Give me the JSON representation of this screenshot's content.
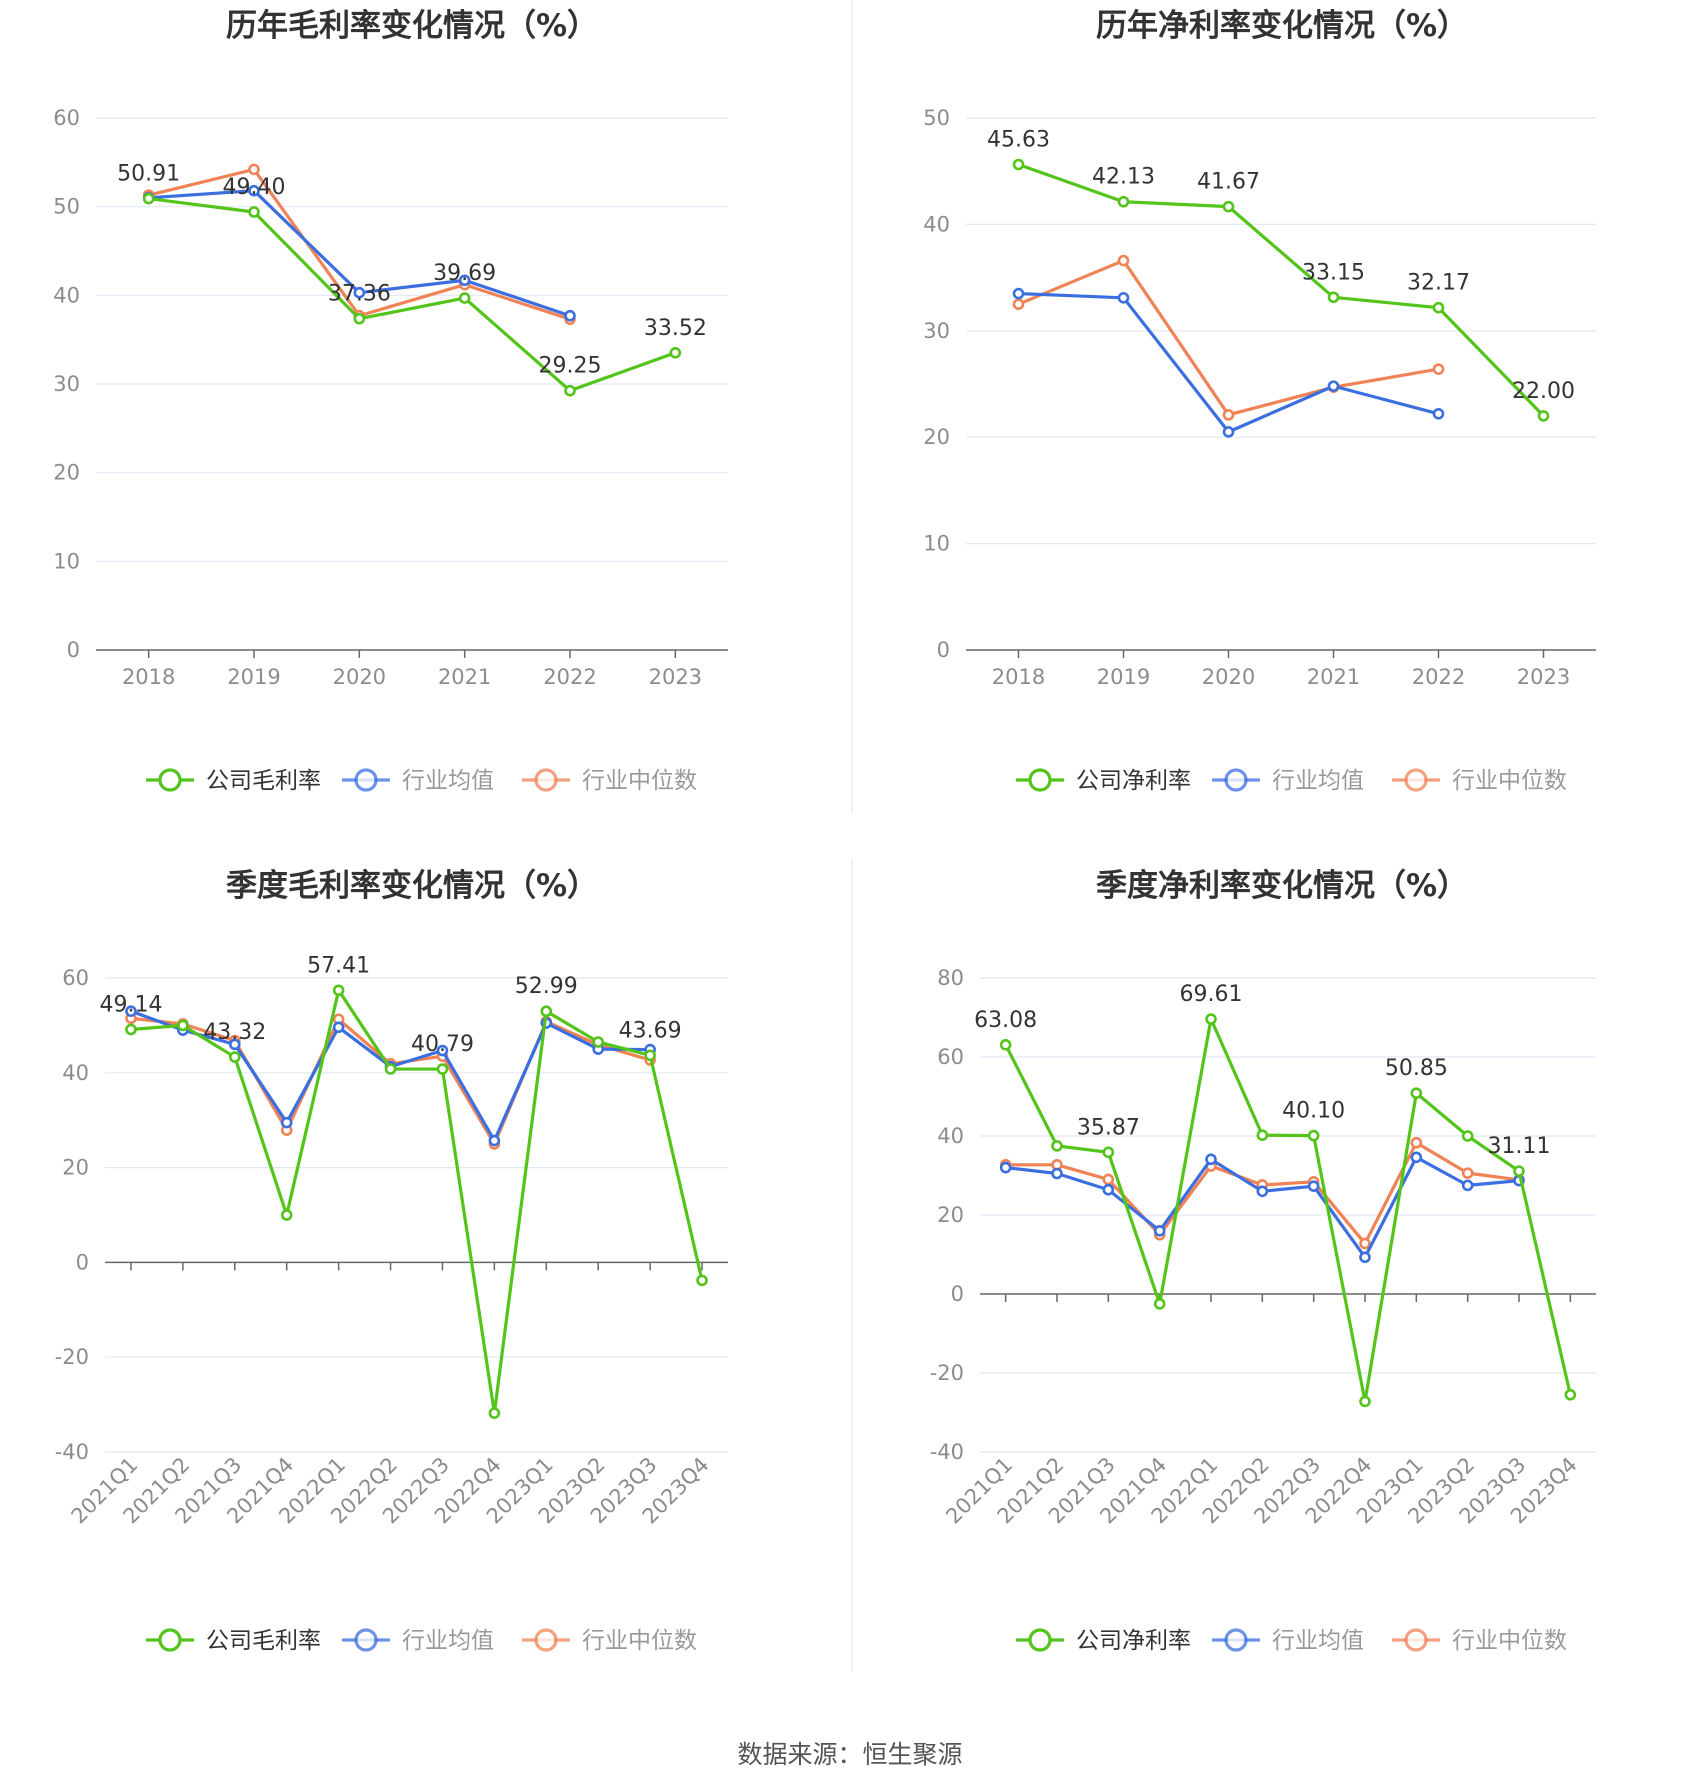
{
  "source_text": "数据来源：恒生聚源",
  "colors": {
    "company": "#52c41a",
    "avg": "#3b6fe0",
    "median": "#f08355",
    "grid": "#e3e8f5",
    "axis": "#666666"
  },
  "legend": {
    "gross": [
      "公司毛利率",
      "行业均值",
      "行业中位数"
    ],
    "net": [
      "公司净利率",
      "行业均值",
      "行业中位数"
    ]
  },
  "chart_data": [
    {
      "type": "line",
      "title": "历年毛利率变化情况（%）",
      "categories": [
        "2018",
        "2019",
        "2020",
        "2021",
        "2022",
        "2023"
      ],
      "ylim": [
        0,
        60
      ],
      "yticks": [
        0,
        10,
        20,
        30,
        40,
        50,
        60
      ],
      "grid": true,
      "legend_position": "bottom",
      "series": [
        {
          "name": "公司毛利率",
          "values": [
            50.91,
            49.4,
            37.36,
            39.69,
            29.25,
            33.52
          ],
          "labels": [
            "50.91",
            "49.40",
            "37.36",
            "39.69",
            "29.25",
            "33.52"
          ]
        },
        {
          "name": "行业均值",
          "values": [
            51.0,
            51.8,
            40.3,
            41.7,
            37.7,
            null
          ]
        },
        {
          "name": "行业中位数",
          "values": [
            51.3,
            54.2,
            37.7,
            41.2,
            37.3,
            null
          ]
        }
      ]
    },
    {
      "type": "line",
      "title": "历年净利率变化情况（%）",
      "categories": [
        "2018",
        "2019",
        "2020",
        "2021",
        "2022",
        "2023"
      ],
      "ylim": [
        0,
        50
      ],
      "yticks": [
        0,
        10,
        20,
        30,
        40,
        50
      ],
      "grid": true,
      "legend_position": "bottom",
      "series": [
        {
          "name": "公司净利率",
          "values": [
            45.63,
            42.13,
            41.67,
            33.15,
            32.17,
            22.0
          ],
          "labels": [
            "45.63",
            "42.13",
            "41.67",
            "33.15",
            "32.17",
            "22.00"
          ]
        },
        {
          "name": "行业均值",
          "values": [
            33.5,
            33.1,
            20.5,
            24.8,
            22.2,
            null
          ]
        },
        {
          "name": "行业中位数",
          "values": [
            32.5,
            36.6,
            22.1,
            24.7,
            26.4,
            null
          ]
        }
      ]
    },
    {
      "type": "line",
      "title": "季度毛利率变化情况（%）",
      "categories": [
        "2021Q1",
        "2021Q2",
        "2021Q3",
        "2021Q4",
        "2022Q1",
        "2022Q2",
        "2022Q3",
        "2022Q4",
        "2023Q1",
        "2023Q2",
        "2023Q3",
        "2023Q4"
      ],
      "ylim": [
        -40,
        60
      ],
      "yticks": [
        -40,
        -20,
        0,
        20,
        40,
        60
      ],
      "grid": true,
      "legend_position": "bottom",
      "series": [
        {
          "name": "公司毛利率",
          "values": [
            49.14,
            50.0,
            43.32,
            10.0,
            57.41,
            40.8,
            40.79,
            -31.8,
            52.99,
            46.5,
            43.69,
            -3.8
          ],
          "labels": [
            "49.14",
            null,
            "43.32",
            null,
            "57.41",
            null,
            "40.79",
            null,
            "52.99",
            null,
            "43.69",
            null
          ]
        },
        {
          "name": "行业均值",
          "values": [
            53.0,
            49.0,
            46.0,
            29.5,
            49.6,
            41.3,
            44.7,
            25.7,
            50.5,
            45.0,
            44.9,
            null
          ]
        },
        {
          "name": "行业中位数",
          "values": [
            51.5,
            50.3,
            46.8,
            27.9,
            51.3,
            41.9,
            43.5,
            25.0,
            50.8,
            45.9,
            42.7,
            null
          ]
        }
      ]
    },
    {
      "type": "line",
      "title": "季度净利率变化情况（%）",
      "categories": [
        "2021Q1",
        "2021Q2",
        "2021Q3",
        "2021Q4",
        "2022Q1",
        "2022Q2",
        "2022Q3",
        "2022Q4",
        "2023Q1",
        "2023Q2",
        "2023Q3",
        "2023Q4"
      ],
      "ylim": [
        -40,
        80
      ],
      "yticks": [
        -40,
        -20,
        0,
        20,
        40,
        60,
        80
      ],
      "grid": true,
      "legend_position": "bottom",
      "series": [
        {
          "name": "公司净利率",
          "values": [
            63.08,
            37.5,
            35.87,
            -2.5,
            69.61,
            40.2,
            40.1,
            -27.2,
            50.85,
            40.0,
            31.11,
            -25.5
          ],
          "labels": [
            "63.08",
            null,
            "35.87",
            null,
            "69.61",
            null,
            "40.10",
            null,
            "50.85",
            null,
            "31.11",
            null
          ]
        },
        {
          "name": "行业均值",
          "values": [
            32.0,
            30.5,
            26.4,
            16.0,
            34.1,
            26.0,
            27.3,
            9.3,
            34.6,
            27.5,
            28.7,
            null
          ]
        },
        {
          "name": "行业中位数",
          "values": [
            32.7,
            32.7,
            29.0,
            15.0,
            32.4,
            27.6,
            28.4,
            12.8,
            38.3,
            30.6,
            28.9,
            null
          ]
        }
      ]
    }
  ]
}
